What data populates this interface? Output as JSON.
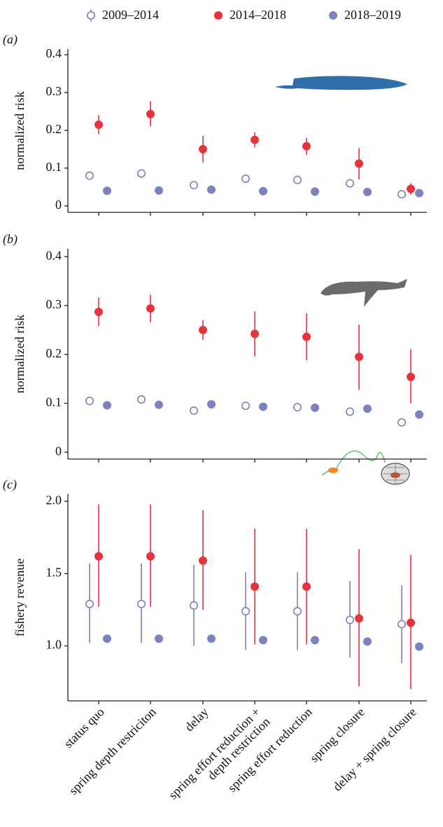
{
  "legend": [
    {
      "name": "2009–2014",
      "color": "#7b82c0",
      "hollow": true
    },
    {
      "name": "2014–2018",
      "color": "#e8323c",
      "hollow": false
    },
    {
      "name": "2018–2019",
      "color": "#7b82c0",
      "hollow": false
    }
  ],
  "chart_data": [
    {
      "type": "pointrange",
      "panel": "(a)",
      "y_label": "normalized risk",
      "ylim": [
        -0.017,
        0.415
      ],
      "yticks": [
        0,
        0.1,
        0.2,
        0.3,
        0.4
      ],
      "series": [
        {
          "values": [
            0.08,
            0.086,
            0.055,
            0.072,
            0.069,
            0.06,
            0.031
          ],
          "low": [
            0.072,
            0.078,
            0.047,
            0.064,
            0.061,
            0.052,
            0.023
          ],
          "high": [
            0.088,
            0.094,
            0.063,
            0.08,
            0.077,
            0.068,
            0.039
          ]
        },
        {
          "values": [
            0.215,
            0.243,
            0.15,
            0.175,
            0.158,
            0.112,
            0.045
          ],
          "low": [
            0.19,
            0.21,
            0.115,
            0.155,
            0.135,
            0.07,
            0.03
          ],
          "high": [
            0.24,
            0.277,
            0.185,
            0.195,
            0.18,
            0.153,
            0.06
          ]
        },
        {
          "values": [
            0.04,
            0.041,
            0.043,
            0.039,
            0.038,
            0.037,
            0.034
          ]
        }
      ]
    },
    {
      "type": "pointrange",
      "panel": "(b)",
      "y_label": "normalized risk",
      "ylim": [
        -0.014,
        0.416
      ],
      "yticks": [
        0,
        0.1,
        0.2,
        0.3,
        0.4
      ],
      "series": [
        {
          "values": [
            0.105,
            0.108,
            0.085,
            0.095,
            0.092,
            0.083,
            0.061
          ],
          "low": [
            0.097,
            0.1,
            0.077,
            0.087,
            0.084,
            0.075,
            0.053
          ],
          "high": [
            0.113,
            0.116,
            0.093,
            0.103,
            0.1,
            0.091,
            0.069
          ]
        },
        {
          "values": [
            0.287,
            0.294,
            0.25,
            0.242,
            0.236,
            0.195,
            0.154
          ],
          "low": [
            0.258,
            0.266,
            0.23,
            0.196,
            0.188,
            0.128,
            0.1
          ],
          "high": [
            0.316,
            0.322,
            0.27,
            0.288,
            0.284,
            0.261,
            0.21
          ]
        },
        {
          "values": [
            0.096,
            0.097,
            0.098,
            0.093,
            0.091,
            0.089,
            0.077
          ]
        }
      ]
    },
    {
      "type": "pointrange",
      "panel": "(c)",
      "y_label": "fishery revenue",
      "ylim": [
        0.62,
        2.05
      ],
      "yticks": [
        {
          "value": 1,
          "label": "1.0"
        },
        1.5,
        {
          "value": 2,
          "label": "2.0"
        }
      ],
      "categories": [
        "status quo",
        "spring depth restriciton",
        "delay",
        "spring effort reduction +\ndepth restriction",
        "spring effort reduction",
        "spring closure",
        "delay + spring closure"
      ],
      "series": [
        {
          "values": [
            1.29,
            1.29,
            1.28,
            1.24,
            1.24,
            1.18,
            1.15
          ],
          "low": [
            1.02,
            1.02,
            1.0,
            0.97,
            0.97,
            0.92,
            0.88
          ],
          "high": [
            1.57,
            1.57,
            1.56,
            1.51,
            1.51,
            1.45,
            1.42
          ]
        },
        {
          "values": [
            1.62,
            1.62,
            1.59,
            1.41,
            1.41,
            1.19,
            1.16
          ],
          "low": [
            1.27,
            1.27,
            1.25,
            1.01,
            1.01,
            0.72,
            0.7
          ],
          "high": [
            1.98,
            1.98,
            1.94,
            1.81,
            1.81,
            1.67,
            1.63
          ]
        },
        {
          "values": [
            1.05,
            1.05,
            1.05,
            1.04,
            1.04,
            1.03,
            0.995
          ]
        }
      ]
    }
  ]
}
